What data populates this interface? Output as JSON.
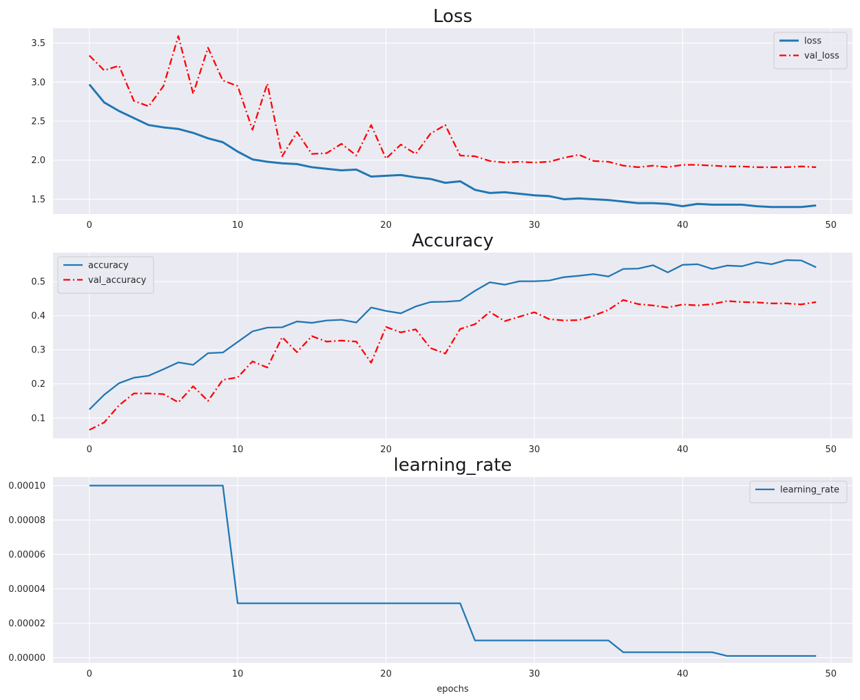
{
  "chart_data": [
    {
      "type": "line",
      "title": "Loss",
      "xlabel": "",
      "ylabel": "",
      "xlim": [
        -2.45,
        51.45
      ],
      "ylim": [
        1.31,
        3.69
      ],
      "xticks": [
        0,
        10,
        20,
        30,
        40,
        50
      ],
      "yticks": [
        1.5,
        2.0,
        2.5,
        3.0,
        3.5
      ],
      "ytick_labels": [
        "1.5",
        "2.0",
        "2.5",
        "3.0",
        "3.5"
      ],
      "legend_position": "upper right",
      "grid": true,
      "x": [
        0,
        1,
        2,
        3,
        4,
        5,
        6,
        7,
        8,
        9,
        10,
        11,
        12,
        13,
        14,
        15,
        16,
        17,
        18,
        19,
        20,
        21,
        22,
        23,
        24,
        25,
        26,
        27,
        28,
        29,
        30,
        31,
        32,
        33,
        34,
        35,
        36,
        37,
        38,
        39,
        40,
        41,
        42,
        43,
        44,
        45,
        46,
        47,
        48,
        49
      ],
      "series": [
        {
          "name": "loss",
          "color": "#1f77b4",
          "style": "solid",
          "width": 3,
          "values": [
            2.97,
            2.74,
            2.63,
            2.54,
            2.45,
            2.42,
            2.4,
            2.35,
            2.28,
            2.23,
            2.11,
            2.01,
            1.98,
            1.96,
            1.95,
            1.91,
            1.89,
            1.87,
            1.88,
            1.79,
            1.8,
            1.81,
            1.78,
            1.76,
            1.71,
            1.73,
            1.62,
            1.58,
            1.59,
            1.57,
            1.55,
            1.54,
            1.5,
            1.51,
            1.5,
            1.49,
            1.47,
            1.45,
            1.45,
            1.44,
            1.41,
            1.44,
            1.43,
            1.43,
            1.43,
            1.41,
            1.4,
            1.4,
            1.4,
            1.42
          ]
        },
        {
          "name": "val_loss",
          "color": "#ff0000",
          "style": "dashdot",
          "width": 2.3,
          "values": [
            3.34,
            3.15,
            3.21,
            2.76,
            2.69,
            2.95,
            3.59,
            2.85,
            3.44,
            3.02,
            2.95,
            2.39,
            2.98,
            2.05,
            2.36,
            2.08,
            2.09,
            2.21,
            2.06,
            2.45,
            2.02,
            2.2,
            2.08,
            2.34,
            2.45,
            2.06,
            2.05,
            1.99,
            1.97,
            1.98,
            1.97,
            1.98,
            2.03,
            2.07,
            1.99,
            1.98,
            1.93,
            1.91,
            1.93,
            1.91,
            1.94,
            1.94,
            1.93,
            1.92,
            1.92,
            1.91,
            1.91,
            1.91,
            1.92,
            1.91
          ]
        }
      ]
    },
    {
      "type": "line",
      "title": "Accuracy",
      "xlabel": "",
      "ylabel": "",
      "xlim": [
        -2.45,
        51.45
      ],
      "ylim": [
        0.04,
        0.585
      ],
      "xticks": [
        0,
        10,
        20,
        30,
        40,
        50
      ],
      "yticks": [
        0.1,
        0.2,
        0.3,
        0.4,
        0.5
      ],
      "ytick_labels": [
        "0.1",
        "0.2",
        "0.3",
        "0.4",
        "0.5"
      ],
      "legend_position": "upper left",
      "grid": true,
      "x": [
        0,
        1,
        2,
        3,
        4,
        5,
        6,
        7,
        8,
        9,
        10,
        11,
        12,
        13,
        14,
        15,
        16,
        17,
        18,
        19,
        20,
        21,
        22,
        23,
        24,
        25,
        26,
        27,
        28,
        29,
        30,
        31,
        32,
        33,
        34,
        35,
        36,
        37,
        38,
        39,
        40,
        41,
        42,
        43,
        44,
        45,
        46,
        47,
        48,
        49
      ],
      "series": [
        {
          "name": "accuracy",
          "color": "#1f77b4",
          "style": "solid",
          "width": 2.3,
          "values": [
            0.125,
            0.168,
            0.202,
            0.218,
            0.224,
            0.243,
            0.263,
            0.256,
            0.29,
            0.292,
            0.323,
            0.354,
            0.365,
            0.366,
            0.383,
            0.379,
            0.386,
            0.388,
            0.38,
            0.424,
            0.414,
            0.407,
            0.427,
            0.44,
            0.441,
            0.444,
            0.473,
            0.498,
            0.491,
            0.501,
            0.501,
            0.503,
            0.513,
            0.517,
            0.522,
            0.515,
            0.537,
            0.538,
            0.548,
            0.527,
            0.549,
            0.551,
            0.537,
            0.547,
            0.545,
            0.557,
            0.551,
            0.563,
            0.562,
            0.542
          ]
        },
        {
          "name": "val_accuracy",
          "color": "#ff0000",
          "style": "dashdot",
          "width": 2.3,
          "values": [
            0.065,
            0.087,
            0.137,
            0.172,
            0.172,
            0.17,
            0.146,
            0.193,
            0.15,
            0.212,
            0.219,
            0.266,
            0.248,
            0.337,
            0.293,
            0.34,
            0.324,
            0.327,
            0.324,
            0.262,
            0.367,
            0.351,
            0.36,
            0.305,
            0.289,
            0.361,
            0.375,
            0.411,
            0.384,
            0.397,
            0.41,
            0.39,
            0.386,
            0.387,
            0.4,
            0.417,
            0.446,
            0.434,
            0.43,
            0.424,
            0.433,
            0.43,
            0.434,
            0.443,
            0.44,
            0.439,
            0.436,
            0.436,
            0.433,
            0.44
          ]
        }
      ]
    },
    {
      "type": "line",
      "title": "learning_rate",
      "xlabel": "epochs",
      "ylabel": "",
      "xlim": [
        -2.45,
        51.45
      ],
      "ylim": [
        -3e-06,
        0.000105
      ],
      "xticks": [
        0,
        10,
        20,
        30,
        40,
        50
      ],
      "yticks": [
        0,
        2e-05,
        4e-05,
        6e-05,
        8e-05,
        0.0001
      ],
      "ytick_labels": [
        "0.00000",
        "0.00002",
        "0.00004",
        "0.00006",
        "0.00008",
        "0.00010"
      ],
      "legend_position": "upper right",
      "grid": true,
      "x": [
        0,
        1,
        2,
        3,
        4,
        5,
        6,
        7,
        8,
        9,
        10,
        11,
        12,
        13,
        14,
        15,
        16,
        17,
        18,
        19,
        20,
        21,
        22,
        23,
        24,
        25,
        26,
        27,
        28,
        29,
        30,
        31,
        32,
        33,
        34,
        35,
        36,
        37,
        38,
        39,
        40,
        41,
        42,
        43,
        44,
        45,
        46,
        47,
        48,
        49
      ],
      "series": [
        {
          "name": "learning_rate",
          "color": "#1f77b4",
          "style": "solid",
          "width": 2.3,
          "values": [
            0.0001,
            0.0001,
            0.0001,
            0.0001,
            0.0001,
            0.0001,
            0.0001,
            0.0001,
            0.0001,
            0.0001,
            3.16e-05,
            3.16e-05,
            3.16e-05,
            3.16e-05,
            3.16e-05,
            3.16e-05,
            3.16e-05,
            3.16e-05,
            3.16e-05,
            3.16e-05,
            3.16e-05,
            3.16e-05,
            3.16e-05,
            3.16e-05,
            3.16e-05,
            3.16e-05,
            1e-05,
            1e-05,
            1e-05,
            1e-05,
            1e-05,
            1e-05,
            1e-05,
            1e-05,
            1e-05,
            1e-05,
            3.16e-06,
            3.16e-06,
            3.16e-06,
            3.16e-06,
            3.16e-06,
            3.16e-06,
            3.16e-06,
            1e-06,
            1e-06,
            1e-06,
            1e-06,
            1e-06,
            1e-06,
            1e-06
          ]
        }
      ]
    }
  ]
}
